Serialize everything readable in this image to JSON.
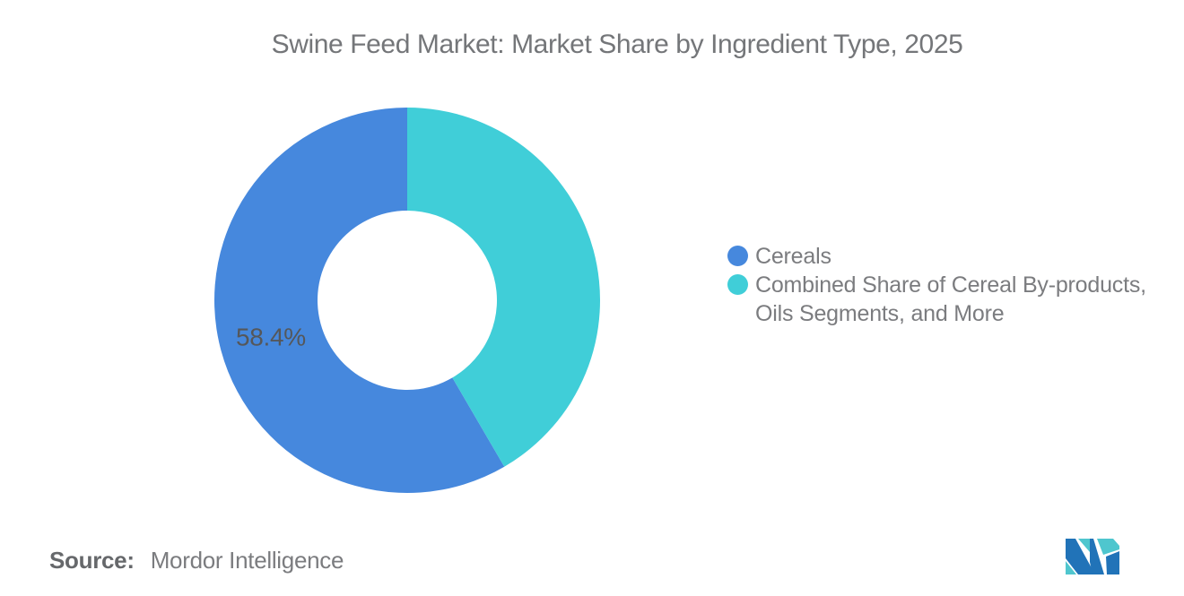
{
  "title": {
    "text": "Swine Feed Market: Market Share by Ingredient Type, 2025",
    "color": "#747679"
  },
  "chart_data": {
    "type": "pie",
    "subtype": "donut",
    "title": "Swine Feed Market: Market Share by Ingredient Type, 2025",
    "start_angle_deg": 90,
    "direction": "counterclockwise",
    "inner_radius_ratio": 0.465,
    "data_label_color": "#55575A",
    "legend_position": "right",
    "background": "#ffffff",
    "slices": [
      {
        "label": "Cereals",
        "value": 58.4,
        "color": "#4688DD",
        "data_label": "58.4%",
        "legend_lines": [
          "Cereals"
        ]
      },
      {
        "label": "Combined Share of Cereal By-products, Oils Segments, and More",
        "value": 41.6,
        "color": "#40CED8",
        "data_label": "",
        "legend_lines": [
          "Combined Share of Cereal By-products,",
          "Oils Segments, and More"
        ]
      }
    ]
  },
  "legend": {
    "text_color": "#7B7C7F"
  },
  "footer": {
    "source_label": "Source:",
    "source_value": "Mordor Intelligence",
    "source_label_color": "#66686B",
    "source_value_color": "#7B7C7F",
    "logo": {
      "name": "mordor-intelligence-logo",
      "teal": "#4FC6CE",
      "blue": "#2173B8"
    }
  }
}
